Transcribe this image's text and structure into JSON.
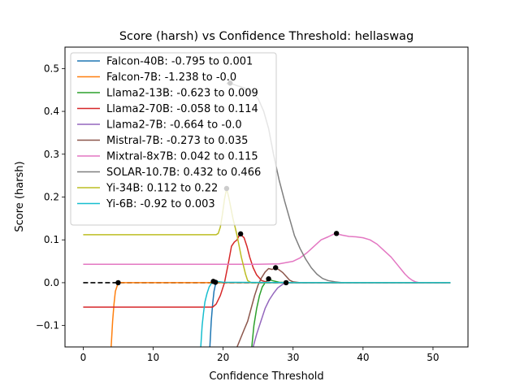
{
  "chart_data": {
    "type": "line",
    "title": "Score (harsh) vs Confidence Threshold: hellaswag",
    "xlabel": "Confidence Threshold",
    "ylabel": "Score (harsh)",
    "xlim": [
      -2.6,
      55
    ],
    "ylim": [
      -0.15,
      0.55
    ],
    "xticks": [
      0,
      10,
      20,
      30,
      40,
      50
    ],
    "xtick_labels": [
      "0",
      "10",
      "20",
      "30",
      "40",
      "50"
    ],
    "yticks": [
      -0.1,
      0.0,
      0.1,
      0.2,
      0.3,
      0.4,
      0.5
    ],
    "ytick_labels": [
      "−0.1",
      "0.0",
      "0.1",
      "0.2",
      "0.3",
      "0.4",
      "0.5"
    ],
    "grid": false,
    "legend_position": "top-left",
    "baseline": {
      "y": 0,
      "x_range": [
        0,
        52.5
      ],
      "style": "dashed",
      "color": "#000000"
    },
    "series": [
      {
        "name": "Falcon-40B: -0.795 to 0.001",
        "color": "#1f77b4",
        "x": [
          18.1,
          18.3,
          18.5,
          18.7,
          18.9,
          19.2,
          20,
          25,
          30,
          40,
          52.5
        ],
        "y": [
          -0.15,
          -0.09,
          -0.05,
          -0.02,
          -0.005,
          0.0,
          0.0,
          0.0,
          0.0,
          0.0,
          0.0
        ],
        "max_point": [
          18.9,
          0.001
        ]
      },
      {
        "name": "Falcon-7B: -1.238 to -0.0",
        "color": "#ff7f0e",
        "x": [
          4.0,
          4.2,
          4.4,
          4.6,
          4.9,
          5.2,
          8,
          15,
          25,
          40,
          52.5
        ],
        "y": [
          -0.15,
          -0.09,
          -0.05,
          -0.02,
          -0.005,
          0.0,
          0.0,
          0.0,
          0.0,
          0.0,
          0.0
        ],
        "max_point": [
          5.0,
          0.0
        ]
      },
      {
        "name": "Llama2-13B: -0.623 to 0.009",
        "color": "#2ca02c",
        "x": [
          24.1,
          24.4,
          24.8,
          25.2,
          25.6,
          26.0,
          26.5,
          27.0,
          28.0,
          30,
          40,
          52.5
        ],
        "y": [
          -0.15,
          -0.1,
          -0.06,
          -0.03,
          -0.01,
          0.0,
          0.009,
          0.005,
          0.001,
          0.0,
          0.0,
          0.0
        ],
        "max_point": [
          26.5,
          0.009
        ]
      },
      {
        "name": "Llama2-70B: -0.058 to 0.114",
        "color": "#d62728",
        "x": [
          0,
          10,
          18.5,
          19.0,
          19.6,
          20.2,
          20.8,
          21.2,
          21.6,
          22.0,
          22.4,
          23.0,
          23.4,
          23.8,
          24.3,
          24.8,
          25.5,
          26.5,
          28,
          30,
          35,
          40,
          52.5
        ],
        "y": [
          -0.057,
          -0.057,
          -0.057,
          -0.05,
          -0.03,
          0.0,
          0.05,
          0.085,
          0.095,
          0.1,
          0.114,
          0.105,
          0.085,
          0.06,
          0.035,
          0.018,
          0.005,
          0.0,
          0.0,
          0.0,
          0.0,
          0.0,
          0.0
        ],
        "max_point": [
          22.5,
          0.114
        ]
      },
      {
        "name": "Llama2-7B: -0.664 to -0.0",
        "color": "#9467bd",
        "x": [
          24.3,
          24.8,
          25.4,
          26.0,
          26.6,
          27.2,
          27.8,
          28.5,
          29.0,
          30,
          40,
          52.5
        ],
        "y": [
          -0.15,
          -0.12,
          -0.09,
          -0.06,
          -0.04,
          -0.025,
          -0.012,
          -0.004,
          0.0,
          0.0,
          0.0,
          0.0
        ],
        "max_point": [
          29.0,
          0.0
        ]
      },
      {
        "name": "Mistral-7B: -0.273 to 0.035",
        "color": "#8c564b",
        "x": [
          22.0,
          22.5,
          23.0,
          23.5,
          24.0,
          24.5,
          25.0,
          25.5,
          26.0,
          26.5,
          27.0,
          27.5,
          28.0,
          28.5,
          29.0,
          29.5,
          30,
          31,
          35,
          52.5
        ],
        "y": [
          -0.15,
          -0.13,
          -0.11,
          -0.09,
          -0.06,
          -0.03,
          -0.005,
          0.012,
          0.025,
          0.033,
          0.031,
          0.035,
          0.03,
          0.024,
          0.015,
          0.006,
          0.002,
          0.0,
          0.0,
          0.0
        ],
        "max_point": [
          27.5,
          0.035
        ]
      },
      {
        "name": "Mixtral-8x7B: 0.042 to 0.115",
        "color": "#e377c2",
        "x": [
          0,
          10,
          20,
          25,
          28,
          30,
          31,
          32,
          33,
          34,
          35,
          36,
          37,
          38,
          39,
          40,
          41,
          42,
          43,
          44,
          45,
          45.5,
          46,
          46.5,
          47,
          47.5,
          48,
          52.5
        ],
        "y": [
          0.043,
          0.043,
          0.043,
          0.043,
          0.044,
          0.05,
          0.058,
          0.07,
          0.085,
          0.1,
          0.107,
          0.115,
          0.111,
          0.108,
          0.107,
          0.105,
          0.1,
          0.09,
          0.075,
          0.06,
          0.04,
          0.03,
          0.02,
          0.012,
          0.006,
          0.002,
          0.0,
          0.0
        ],
        "max_point": [
          36.2,
          0.115
        ]
      },
      {
        "name": "SOLAR-10.7B: 0.432 to 0.466",
        "color": "#7f7f7f",
        "x": [
          20.5,
          21.0,
          22.0,
          23.0,
          24.0,
          25.0,
          25.8,
          26.5,
          27.2,
          28.0,
          28.8,
          29.5,
          30.2,
          31.0,
          31.8,
          32.6,
          33.4,
          34.2,
          35.0,
          36.0,
          37.0,
          38.0,
          52.5
        ],
        "y": [
          0.465,
          0.466,
          0.46,
          0.455,
          0.445,
          0.43,
          0.4,
          0.36,
          0.3,
          0.24,
          0.19,
          0.15,
          0.11,
          0.08,
          0.055,
          0.035,
          0.02,
          0.01,
          0.005,
          0.002,
          0.0,
          0.0,
          0.0
        ],
        "max_point": [
          21.0,
          0.466
        ]
      },
      {
        "name": "Yi-34B: 0.112 to 0.22",
        "color": "#bcbd22",
        "x": [
          0,
          10,
          19.0,
          19.3,
          19.6,
          19.9,
          20.2,
          20.5,
          20.8,
          21.1,
          21.4,
          21.7,
          22.0,
          22.3,
          22.6,
          22.9,
          23.2,
          23.5,
          24.0,
          25.0,
          52.5
        ],
        "y": [
          0.112,
          0.112,
          0.112,
          0.115,
          0.13,
          0.16,
          0.195,
          0.22,
          0.2,
          0.175,
          0.15,
          0.13,
          0.11,
          0.085,
          0.06,
          0.04,
          0.02,
          0.005,
          0.0,
          0.0,
          0.0
        ],
        "max_point": [
          20.5,
          0.22
        ]
      },
      {
        "name": "Yi-6B: -0.92 to 0.003",
        "color": "#17becf",
        "x": [
          16.8,
          17.0,
          17.2,
          17.4,
          17.7,
          18.0,
          18.3,
          18.6,
          19.0,
          20,
          30,
          40,
          52.5
        ],
        "y": [
          -0.15,
          -0.1,
          -0.07,
          -0.045,
          -0.025,
          -0.01,
          -0.002,
          0.002,
          0.003,
          0.001,
          0.0,
          0.0,
          0.0
        ],
        "max_point": [
          18.6,
          0.003
        ]
      }
    ]
  }
}
